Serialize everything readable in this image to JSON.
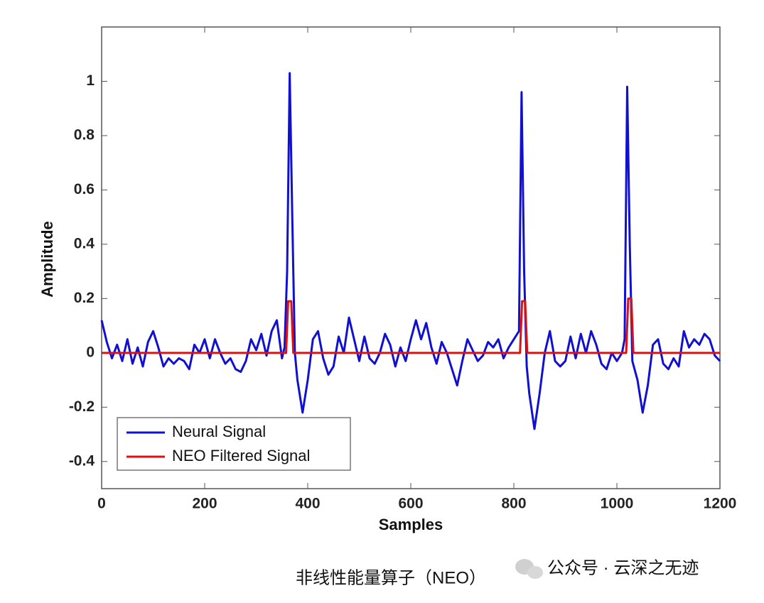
{
  "chart_data": {
    "type": "line",
    "x_label": "Samples",
    "y_label": "Amplitude",
    "xlim": [
      0,
      1200
    ],
    "ylim": [
      -0.5,
      1.2
    ],
    "xticks": [
      0,
      200,
      400,
      600,
      800,
      1000,
      1200
    ],
    "yticks": [
      -0.4,
      -0.2,
      0,
      0.2,
      0.4,
      0.6,
      0.8,
      1
    ],
    "grid": false,
    "legend": "lower left",
    "series": [
      {
        "name": "Neural Signal",
        "color": "#1010d0",
        "x": [
          0,
          10,
          20,
          30,
          40,
          50,
          60,
          70,
          80,
          90,
          100,
          110,
          120,
          130,
          140,
          150,
          160,
          170,
          180,
          190,
          200,
          210,
          220,
          230,
          240,
          250,
          260,
          270,
          280,
          290,
          300,
          310,
          320,
          330,
          340,
          350,
          355,
          360,
          365,
          370,
          375,
          380,
          390,
          400,
          410,
          420,
          430,
          440,
          450,
          460,
          470,
          480,
          490,
          500,
          510,
          520,
          530,
          540,
          550,
          560,
          570,
          580,
          590,
          600,
          610,
          620,
          630,
          640,
          650,
          660,
          670,
          680,
          690,
          700,
          710,
          720,
          730,
          740,
          750,
          760,
          770,
          780,
          790,
          800,
          810,
          815,
          820,
          825,
          830,
          840,
          850,
          860,
          870,
          880,
          890,
          900,
          910,
          920,
          930,
          940,
          950,
          960,
          970,
          980,
          990,
          1000,
          1010,
          1015,
          1020,
          1025,
          1030,
          1040,
          1050,
          1060,
          1070,
          1080,
          1090,
          1100,
          1110,
          1120,
          1130,
          1140,
          1150,
          1160,
          1170,
          1180,
          1190,
          1200
        ],
        "values": [
          0.12,
          0.04,
          -0.02,
          0.03,
          -0.03,
          0.05,
          -0.04,
          0.02,
          -0.05,
          0.04,
          0.08,
          0.02,
          -0.05,
          -0.02,
          -0.04,
          -0.02,
          -0.03,
          -0.06,
          0.03,
          0,
          0.05,
          -0.02,
          0.05,
          0,
          -0.04,
          -0.02,
          -0.06,
          -0.07,
          -0.03,
          0.05,
          0.01,
          0.07,
          -0.01,
          0.08,
          0.12,
          -0.02,
          0.02,
          0.3,
          1.03,
          0.5,
          0,
          -0.1,
          -0.22,
          -0.1,
          0.05,
          0.08,
          -0.02,
          -0.08,
          -0.05,
          0.06,
          0,
          0.13,
          0.05,
          -0.03,
          0.06,
          -0.02,
          -0.04,
          0,
          0.07,
          0.03,
          -0.05,
          0.02,
          -0.03,
          0.05,
          0.12,
          0.05,
          0.11,
          0.02,
          -0.04,
          0.04,
          0,
          -0.06,
          -0.12,
          -0.03,
          0.05,
          0.01,
          -0.03,
          -0.01,
          0.04,
          0.02,
          0.05,
          -0.02,
          0.02,
          0.05,
          0.08,
          0.96,
          0.3,
          -0.05,
          -0.15,
          -0.28,
          -0.15,
          0,
          0.08,
          -0.03,
          -0.05,
          -0.03,
          0.06,
          -0.02,
          0.07,
          0,
          0.08,
          0.03,
          -0.04,
          -0.06,
          0,
          -0.03,
          0,
          0.05,
          0.98,
          0.4,
          -0.03,
          -0.1,
          -0.22,
          -0.12,
          0.03,
          0.05,
          -0.04,
          -0.06,
          -0.02,
          -0.05,
          0.08,
          0.02,
          0.05,
          0.03,
          0.07,
          0.05,
          -0.01,
          -0.03
        ]
      },
      {
        "name": "NEO Filtered Signal",
        "color": "#e01010",
        "x": [
          0,
          358,
          362,
          368,
          372,
          812,
          816,
          822,
          826,
          1018,
          1022,
          1028,
          1032,
          1200
        ],
        "values": [
          0,
          0,
          0.19,
          0.19,
          0,
          0,
          0.19,
          0.19,
          0,
          0,
          0.2,
          0.2,
          0,
          0
        ]
      }
    ]
  },
  "caption": "非线性能量算子（NEO）",
  "watermark": "公众号 · 云深之无迹"
}
